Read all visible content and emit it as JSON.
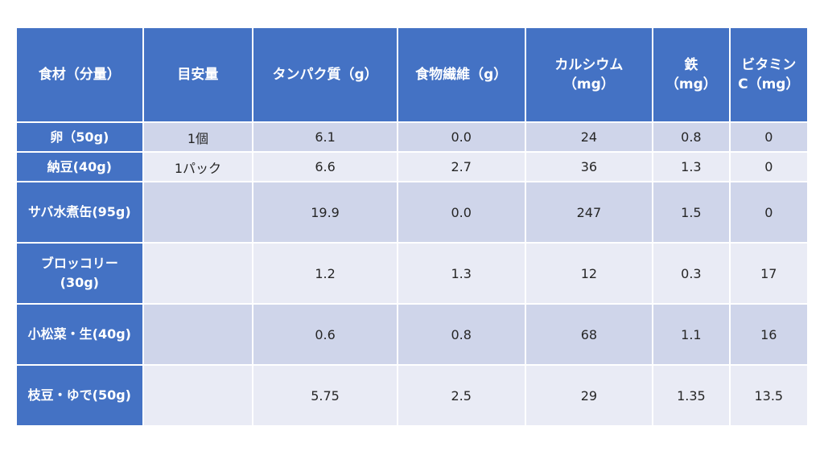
{
  "table": {
    "headers": [
      "食材（分量）",
      "目安量",
      "タンパク質（g）",
      "食物繊維（g）",
      "カルシウム\n（mg）",
      "鉄\n（mg）",
      "ビタミン\nC（mg）"
    ],
    "rows": [
      {
        "food": "卵（50g)",
        "size": "1個",
        "protein": "6.1",
        "fiber": "0.0",
        "calcium": "24",
        "iron": "0.8",
        "vitamin_c": "0"
      },
      {
        "food": "納豆(40g)",
        "size": "1パック",
        "protein": "6.6",
        "fiber": "2.7",
        "calcium": "36",
        "iron": "1.3",
        "vitamin_c": "0"
      },
      {
        "food": "サバ水煮缶(95g)",
        "size": "",
        "protein": "19.9",
        "fiber": "0.0",
        "calcium": "247",
        "iron": "1.5",
        "vitamin_c": "0"
      },
      {
        "food": "ブロッコリー\n(30g)",
        "size": "",
        "protein": "1.2",
        "fiber": "1.3",
        "calcium": "12",
        "iron": "0.3",
        "vitamin_c": "17"
      },
      {
        "food": "小松菜・生(40g)",
        "size": "",
        "protein": "0.6",
        "fiber": "0.8",
        "calcium": "68",
        "iron": "1.1",
        "vitamin_c": "16"
      },
      {
        "food": "枝豆・ゆで(50g)",
        "size": "",
        "protein": "5.75",
        "fiber": "2.5",
        "calcium": "29",
        "iron": "1.35",
        "vitamin_c": "13.5"
      }
    ]
  },
  "colors": {
    "header_bg": "#4472c4",
    "row_odd_bg": "#cfd5ea",
    "row_even_bg": "#e9ebf5",
    "header_text": "#ffffff",
    "cell_text": "#262626"
  }
}
